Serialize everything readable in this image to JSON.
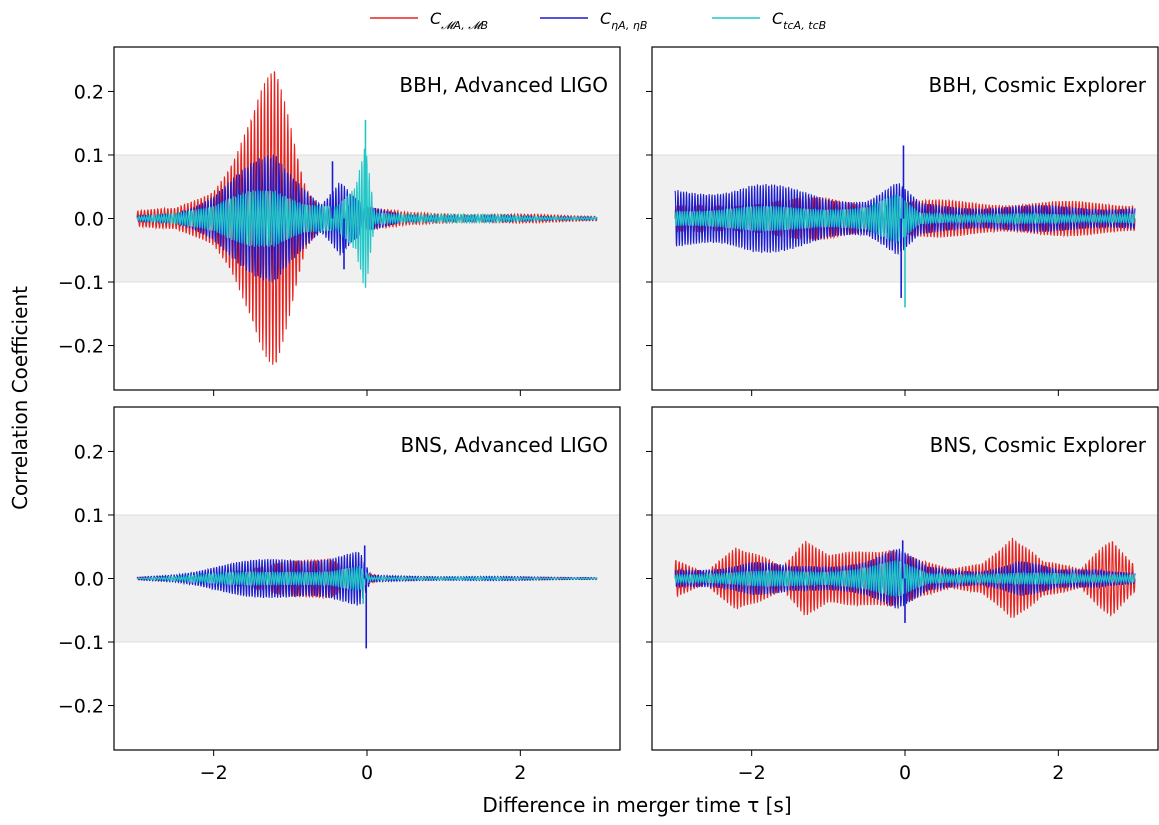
{
  "figure": {
    "ylabel": "Correlation Coefficient",
    "xlabel": "Difference in merger time τ [s]"
  },
  "legend": [
    {
      "main": "C",
      "sub": "𝓜A, 𝓜B",
      "color": "#e8231f"
    },
    {
      "main": "C",
      "sub": "ηA, ηB",
      "color": "#1c1ccf"
    },
    {
      "main": "C",
      "sub": "tcA, tcB",
      "color": "#22c7c7"
    }
  ],
  "chart_data": {
    "type": "line",
    "xlim": [
      -3.3,
      3.3
    ],
    "ylim": [
      -0.27,
      0.27
    ],
    "xticks": [
      -2,
      0,
      2
    ],
    "xtick_labels": [
      "−2",
      "0",
      "2"
    ],
    "yticks": [
      0.2,
      0.1,
      0.0,
      -0.1,
      -0.2
    ],
    "ytick_labels": [
      "0.2",
      "0.1",
      "0.0",
      "−0.1",
      "−0.2"
    ],
    "shaded_band": [
      -0.1,
      0.1
    ],
    "series_colors": {
      "M": "#e8231f",
      "eta": "#1c1ccf",
      "tc": "#22c7c7"
    },
    "panels": [
      {
        "title": "BBH, Advanced LIGO",
        "x_range": [
          -3,
          3
        ],
        "envelopes": {
          "M": [
            [
              -3,
              0.012
            ],
            [
              -2.5,
              0.02
            ],
            [
              -2,
              0.06
            ],
            [
              -1.7,
              0.12
            ],
            [
              -1.4,
              0.2
            ],
            [
              -1.2,
              0.245
            ],
            [
              -1.0,
              0.16
            ],
            [
              -0.8,
              0.06
            ],
            [
              -0.6,
              0.02
            ],
            [
              -0.3,
              0.03
            ],
            [
              0,
              0.02
            ],
            [
              0.5,
              0.01
            ],
            [
              3,
              0.005
            ]
          ],
          "eta": [
            [
              -3,
              0.005
            ],
            [
              -2.5,
              0.01
            ],
            [
              -2,
              0.04
            ],
            [
              -1.5,
              0.09
            ],
            [
              -1.2,
              0.12
            ],
            [
              -0.9,
              0.08
            ],
            [
              -0.6,
              0.03
            ],
            [
              -0.35,
              0.07
            ],
            [
              -0.2,
              0.04
            ],
            [
              0,
              0.02
            ],
            [
              0.5,
              0.006
            ],
            [
              3,
              0.003
            ]
          ],
          "tc": [
            [
              -3,
              0.004
            ],
            [
              -2,
              0.02
            ],
            [
              -1.5,
              0.05
            ],
            [
              -1.2,
              0.06
            ],
            [
              -0.8,
              0.03
            ],
            [
              -0.4,
              0.02
            ],
            [
              -0.15,
              0.05
            ],
            [
              -0.02,
              0.12
            ],
            [
              0.1,
              0.01
            ],
            [
              3,
              0.002
            ]
          ]
        },
        "spikes": [
          {
            "series": "tc",
            "x": -0.02,
            "y": 0.155
          },
          {
            "series": "eta",
            "x": -0.3,
            "y": -0.08
          },
          {
            "series": "eta",
            "x": -0.45,
            "y": 0.09
          }
        ]
      },
      {
        "title": "BBH, Cosmic Explorer",
        "x_range": [
          -3,
          3
        ],
        "envelopes": {
          "M": [
            [
              -3,
              0.02
            ],
            [
              -2,
              0.03
            ],
            [
              -1,
              0.035
            ],
            [
              -0.5,
              0.03
            ],
            [
              0,
              0.03
            ],
            [
              1,
              0.03
            ],
            [
              2,
              0.028
            ],
            [
              3,
              0.028
            ]
          ],
          "eta": [
            [
              -3,
              0.05
            ],
            [
              -2.5,
              0.055
            ],
            [
              -2,
              0.06
            ],
            [
              -1.5,
              0.05
            ],
            [
              -1,
              0.04
            ],
            [
              -0.5,
              0.035
            ],
            [
              -0.1,
              0.06
            ],
            [
              0.2,
              0.025
            ],
            [
              1,
              0.022
            ],
            [
              3,
              0.02
            ]
          ],
          "tc": [
            [
              -3,
              0.015
            ],
            [
              -2,
              0.02
            ],
            [
              -1,
              0.02
            ],
            [
              -0.5,
              0.02
            ],
            [
              -0.1,
              0.04
            ],
            [
              0.2,
              0.01
            ],
            [
              1,
              0.008
            ],
            [
              3,
              0.008
            ]
          ]
        },
        "spikes": [
          {
            "series": "eta",
            "x": -0.02,
            "y": 0.115
          },
          {
            "series": "tc",
            "x": 0.0,
            "y": -0.14
          },
          {
            "series": "eta",
            "x": -0.05,
            "y": -0.125
          }
        ]
      },
      {
        "title": "BNS, Advanced LIGO",
        "x_range": [
          -3,
          3
        ],
        "envelopes": {
          "M": [
            [
              -3,
              0.002
            ],
            [
              -2,
              0.006
            ],
            [
              -1.5,
              0.015
            ],
            [
              -1,
              0.03
            ],
            [
              -0.5,
              0.045
            ],
            [
              -0.2,
              0.02
            ],
            [
              0,
              0.01
            ],
            [
              0.2,
              0.003
            ],
            [
              3,
              0.002
            ]
          ],
          "eta": [
            [
              -3,
              0.002
            ],
            [
              -2.5,
              0.008
            ],
            [
              -2,
              0.02
            ],
            [
              -1.5,
              0.03
            ],
            [
              -1,
              0.04
            ],
            [
              -0.5,
              0.04
            ],
            [
              -0.1,
              0.045
            ],
            [
              0.05,
              0.005
            ],
            [
              3,
              0.002
            ]
          ],
          "tc": [
            [
              -3,
              0.001
            ],
            [
              -2,
              0.008
            ],
            [
              -1.5,
              0.012
            ],
            [
              -1,
              0.015
            ],
            [
              -0.5,
              0.012
            ],
            [
              -0.1,
              0.02
            ],
            [
              0.05,
              0.003
            ],
            [
              3,
              0.001
            ]
          ]
        },
        "spikes": [
          {
            "series": "eta",
            "x": -0.03,
            "y": 0.052
          },
          {
            "series": "eta",
            "x": -0.01,
            "y": -0.11
          },
          {
            "series": "tc",
            "x": -0.05,
            "y": -0.04
          }
        ]
      },
      {
        "title": "BNS, Cosmic Explorer",
        "x_range": [
          -3,
          3
        ],
        "envelopes": {
          "M": [
            [
              -3,
              0.03
            ],
            [
              -2.6,
              0.01
            ],
            [
              -2.2,
              0.07
            ],
            [
              -1.9,
              0.05
            ],
            [
              -1.6,
              0.02
            ],
            [
              -1.3,
              0.06
            ],
            [
              -1.0,
              0.04
            ],
            [
              -0.6,
              0.06
            ],
            [
              -0.2,
              0.06
            ],
            [
              0.2,
              0.03
            ],
            [
              0.6,
              0.015
            ],
            [
              1.0,
              0.03
            ],
            [
              1.4,
              0.09
            ],
            [
              1.8,
              0.03
            ],
            [
              2.3,
              0.015
            ],
            [
              2.7,
              0.08
            ],
            [
              3,
              0.03
            ]
          ],
          "eta": [
            [
              -3,
              0.015
            ],
            [
              -2.5,
              0.02
            ],
            [
              -2,
              0.03
            ],
            [
              -1.5,
              0.02
            ],
            [
              -1,
              0.025
            ],
            [
              -0.5,
              0.035
            ],
            [
              -0.1,
              0.05
            ],
            [
              0.3,
              0.02
            ],
            [
              1,
              0.015
            ],
            [
              1.5,
              0.03
            ],
            [
              2,
              0.015
            ],
            [
              2.5,
              0.02
            ],
            [
              3,
              0.01
            ]
          ],
          "tc": [
            [
              -3,
              0.008
            ],
            [
              -2,
              0.012
            ],
            [
              -1,
              0.015
            ],
            [
              -0.5,
              0.02
            ],
            [
              -0.1,
              0.03
            ],
            [
              0.3,
              0.01
            ],
            [
              1,
              0.008
            ],
            [
              2,
              0.01
            ],
            [
              3,
              0.006
            ]
          ]
        },
        "spikes": [
          {
            "series": "eta",
            "x": -0.03,
            "y": 0.06
          },
          {
            "series": "eta",
            "x": 0.0,
            "y": -0.07
          }
        ]
      }
    ]
  }
}
